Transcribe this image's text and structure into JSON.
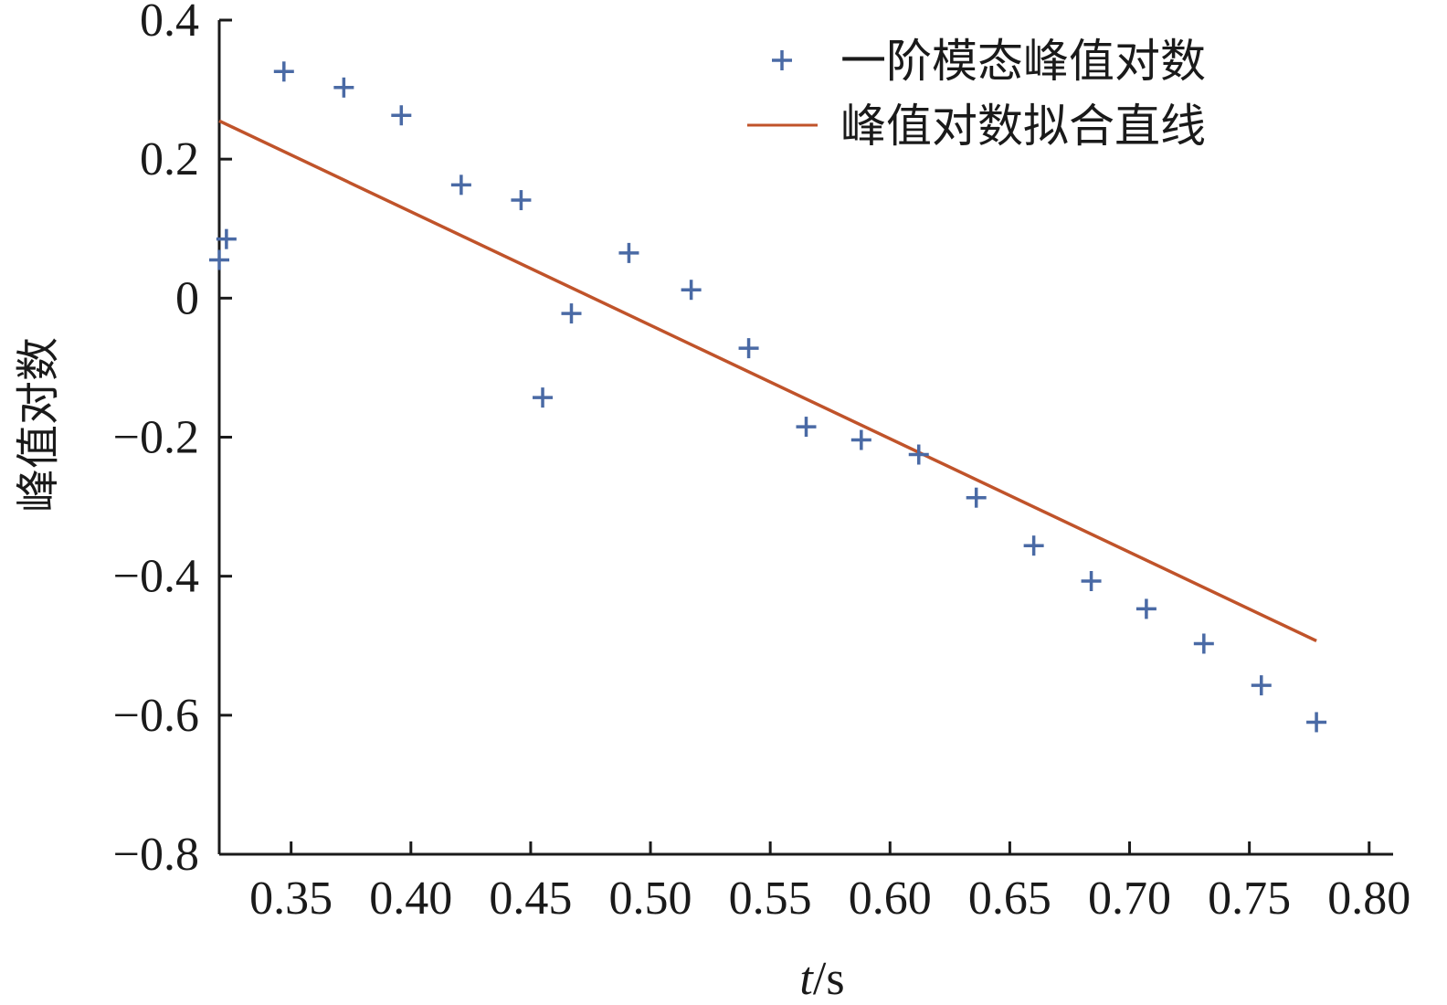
{
  "chart_data": {
    "type": "scatter",
    "xlabel_italic": "t",
    "xlabel_unit": "/s",
    "ylabel": "峰值对数",
    "xlim": [
      0.32,
      0.81
    ],
    "ylim": [
      -0.8,
      0.4
    ],
    "x_ticks": [
      0.35,
      0.4,
      0.45,
      0.5,
      0.55,
      0.6,
      0.65,
      0.7,
      0.75,
      0.8
    ],
    "x_tick_labels": [
      "0.35",
      "0.40",
      "0.45",
      "0.50",
      "0.55",
      "0.60",
      "0.65",
      "0.70",
      "0.75",
      "0.80"
    ],
    "y_ticks": [
      0.4,
      0.2,
      0,
      -0.2,
      -0.4,
      -0.6,
      -0.8
    ],
    "y_tick_labels": [
      "0.4",
      "0.2",
      "0",
      "−0.2",
      "−0.4",
      "−0.6",
      "−0.8"
    ],
    "grid": false,
    "legend_position": "top-right",
    "series": [
      {
        "name": "一阶模态峰值对数",
        "kind": "scatter",
        "marker": "plus",
        "color": "#4a6aa5",
        "points": [
          [
            0.32,
            0.055
          ],
          [
            0.323,
            0.085
          ],
          [
            0.347,
            0.326
          ],
          [
            0.372,
            0.303
          ],
          [
            0.396,
            0.263
          ],
          [
            0.421,
            0.163
          ],
          [
            0.446,
            0.141
          ],
          [
            0.455,
            -0.143
          ],
          [
            0.467,
            -0.022
          ],
          [
            0.491,
            0.065
          ],
          [
            0.517,
            0.012
          ],
          [
            0.541,
            -0.072
          ],
          [
            0.565,
            -0.185
          ],
          [
            0.588,
            -0.204
          ],
          [
            0.612,
            -0.225
          ],
          [
            0.636,
            -0.287
          ],
          [
            0.66,
            -0.356
          ],
          [
            0.684,
            -0.407
          ],
          [
            0.707,
            -0.447
          ],
          [
            0.731,
            -0.497
          ],
          [
            0.755,
            -0.557
          ],
          [
            0.778,
            -0.61
          ]
        ]
      },
      {
        "name": "峰值对数拟合直线",
        "kind": "line",
        "color": "#c0532a",
        "points": [
          [
            0.32,
            0.255
          ],
          [
            0.778,
            -0.493
          ]
        ]
      }
    ]
  }
}
